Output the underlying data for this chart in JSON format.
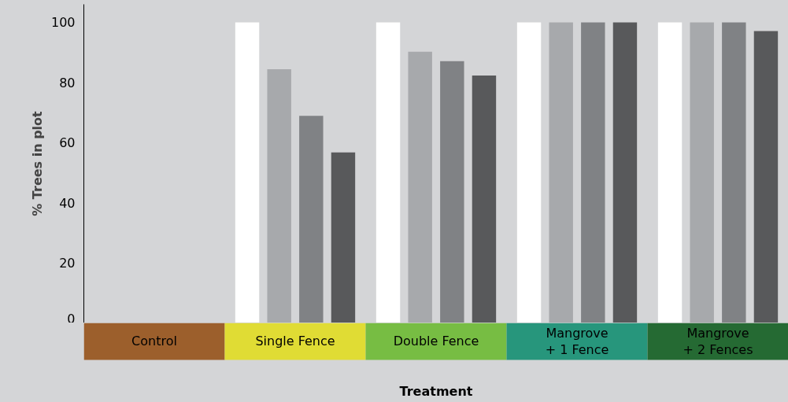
{
  "chart_data": {
    "type": "bar",
    "xlabel": "Treatment",
    "ylabel": "% Trees in plot",
    "categories": [
      "Control",
      "Single Fence",
      "Double Fence",
      "Mangrove\n+ 1 Fence",
      "Mangrove\n+ 2 Fences"
    ],
    "series": [
      {
        "color": "#ffffff",
        "values": [
          null,
          100,
          100,
          100,
          100
        ]
      },
      {
        "color": "#a7a9ac",
        "values": [
          null,
          84.4,
          90.2,
          100,
          100
        ]
      },
      {
        "color": "#808285",
        "values": [
          null,
          68.9,
          87.1,
          100,
          100
        ]
      },
      {
        "color": "#58595b",
        "values": [
          null,
          56.7,
          82.3,
          100,
          97.1
        ]
      }
    ],
    "ylim": [
      0,
      106
    ],
    "yticks": [
      0,
      20,
      40,
      60,
      80,
      100
    ],
    "grid": false
  }
}
